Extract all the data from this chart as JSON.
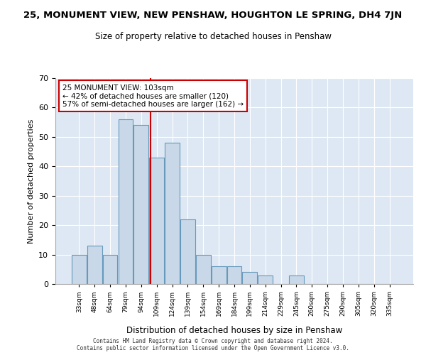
{
  "title": "25, MONUMENT VIEW, NEW PENSHAW, HOUGHTON LE SPRING, DH4 7JN",
  "subtitle": "Size of property relative to detached houses in Penshaw",
  "xlabel": "Distribution of detached houses by size in Penshaw",
  "ylabel": "Number of detached properties",
  "bar_color": "#c8d8e8",
  "bar_edge_color": "#6699bb",
  "bins": [
    "33sqm",
    "48sqm",
    "64sqm",
    "79sqm",
    "94sqm",
    "109sqm",
    "124sqm",
    "139sqm",
    "154sqm",
    "169sqm",
    "184sqm",
    "199sqm",
    "214sqm",
    "229sqm",
    "245sqm",
    "260sqm",
    "275sqm",
    "290sqm",
    "305sqm",
    "320sqm",
    "335sqm"
  ],
  "values": [
    10,
    13,
    10,
    56,
    54,
    43,
    48,
    22,
    10,
    6,
    6,
    4,
    3,
    0,
    3,
    0,
    0,
    0,
    0,
    0,
    0
  ],
  "vline_color": "#cc0000",
  "annotation_text": "25 MONUMENT VIEW: 103sqm\n← 42% of detached houses are smaller (120)\n57% of semi-detached houses are larger (162) →",
  "annotation_box_color": "white",
  "annotation_box_edge": "#cc0000",
  "ylim": [
    0,
    70
  ],
  "yticks": [
    0,
    10,
    20,
    30,
    40,
    50,
    60,
    70
  ],
  "bg_color": "#dde8f4",
  "footer_line1": "Contains HM Land Registry data © Crown copyright and database right 2024.",
  "footer_line2": "Contains public sector information licensed under the Open Government Licence v3.0."
}
